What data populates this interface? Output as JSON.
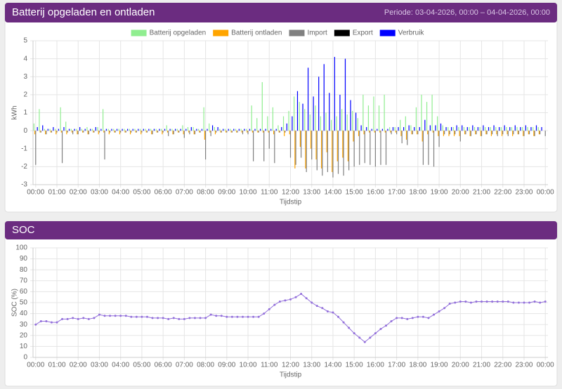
{
  "chart_data": [
    {
      "type": "bar",
      "title": "Batterij opgeladen en ontladen",
      "subtitle": "Periode: 03-04-2026, 00:00 – 04-04-2026, 00:00",
      "x_label": "Tijdstip",
      "y_label": "kWh",
      "legend": "top",
      "grid": true,
      "categories": [
        "00:00",
        null,
        null,
        null,
        "01:00",
        null,
        null,
        null,
        "02:00",
        null,
        null,
        null,
        "03:00",
        null,
        null,
        null,
        "04:00",
        null,
        null,
        null,
        "05:00",
        null,
        null,
        null,
        "06:00",
        null,
        null,
        null,
        "07:00",
        null,
        null,
        null,
        "08:00",
        null,
        null,
        null,
        "09:00",
        null,
        null,
        null,
        "10:00",
        null,
        null,
        null,
        "11:00",
        null,
        null,
        null,
        "12:00",
        null,
        null,
        null,
        "13:00",
        null,
        null,
        null,
        "14:00",
        null,
        null,
        null,
        "15:00",
        null,
        null,
        null,
        "16:00",
        null,
        null,
        null,
        "17:00",
        null,
        null,
        null,
        "18:00",
        null,
        null,
        null,
        "19:00",
        null,
        null,
        null,
        "20:00",
        null,
        null,
        null,
        "21:00",
        null,
        null,
        null,
        "22:00",
        null,
        null,
        null,
        "23:00",
        null,
        null,
        null,
        "00:00"
      ],
      "ylim": [
        -3,
        5
      ],
      "yticks": [
        -3,
        -2,
        -1,
        0,
        1,
        2,
        3,
        4,
        5
      ],
      "series": [
        {
          "name": "Batterij opgeladen",
          "color": "#90ee90",
          "values": [
            0.4,
            1.2,
            0.1,
            0.1,
            0.1,
            1.3,
            0.5,
            0.1,
            0.1,
            0.1,
            0.2,
            0.1,
            0.2,
            1.2,
            0.1,
            0.1,
            0.1,
            0.1,
            0.1,
            0.1,
            0.1,
            0.1,
            0.1,
            0.1,
            0.1,
            0.3,
            0.1,
            0.1,
            0.3,
            0.2,
            0.2,
            0.1,
            1.3,
            0.4,
            0.2,
            0.1,
            0.1,
            0.1,
            0.1,
            0.1,
            0.1,
            1.4,
            0.7,
            2.7,
            0.8,
            1.3,
            0.3,
            0.8,
            1.1,
            1.9,
            1.6,
            1.2,
            0.9,
            1.4,
            0.8,
            1.0,
            0.6,
            0.8,
            1.2,
            0.9,
            1.1,
            0.7,
            2.0,
            1.4,
            1.9,
            1.4,
            2.0,
            0.2,
            0.2,
            0.6,
            0.8,
            0.3,
            1.3,
            2.0,
            1.6,
            2.0,
            0.8,
            0.3,
            0.2,
            0.2,
            0.2,
            0.2,
            0.2,
            0.2,
            0.2,
            0.2,
            0.2,
            0.2,
            0.2,
            0.2,
            0.2,
            0.2,
            0.2,
            0.2,
            0.2,
            0.2,
            0
          ]
        },
        {
          "name": "Batterij ontladen",
          "color": "#ffa500",
          "values": [
            -0.2,
            -0.1,
            -0.2,
            -0.1,
            -0.2,
            -0.1,
            -0.2,
            -0.1,
            -0.2,
            -0.1,
            -0.2,
            -0.1,
            -0.2,
            -0.1,
            -0.2,
            -0.1,
            -0.2,
            -0.1,
            -0.2,
            -0.1,
            -0.2,
            -0.1,
            -0.2,
            -0.1,
            -0.2,
            -0.1,
            -0.2,
            -0.1,
            -0.2,
            -0.1,
            -0.2,
            -0.1,
            -0.5,
            -0.1,
            -0.2,
            -0.1,
            -0.1,
            -0.1,
            -0.1,
            -0.1,
            -0.1,
            -0.1,
            -0.1,
            -0.1,
            -0.1,
            -0.2,
            -0.1,
            -0.3,
            -0.2,
            -2.1,
            -0.9,
            -2.1,
            -1.0,
            -1.6,
            -2.1,
            -1.2,
            -2.3,
            -1.7,
            -1.5,
            -1.7,
            -0.6,
            -0.3,
            -0.2,
            -0.1,
            -0.1,
            -0.1,
            -0.1,
            -0.1,
            -0.1,
            -0.3,
            -0.5,
            -0.2,
            -0.2,
            -0.6,
            -0.2,
            -0.1,
            -0.3,
            -0.3,
            -0.3,
            -0.3,
            -0.3,
            -0.2,
            -0.3,
            -0.2,
            -0.3,
            -0.2,
            -0.3,
            -0.2,
            -0.3,
            -0.2,
            -0.3,
            -0.2,
            -0.3,
            -0.2,
            -0.3,
            -0.2,
            0
          ]
        },
        {
          "name": "Import",
          "color": "#808080",
          "values": [
            -1.9,
            -0.1,
            -0.2,
            -0.1,
            -0.1,
            -1.8,
            -0.1,
            -0.2,
            -0.2,
            -0.1,
            -0.2,
            -0.1,
            -0.1,
            -1.6,
            -0.1,
            -0.1,
            -0.1,
            -0.1,
            -0.1,
            -0.1,
            -0.1,
            -0.1,
            -0.2,
            -0.1,
            -0.1,
            -0.3,
            -0.2,
            -0.1,
            -0.4,
            -0.2,
            -0.2,
            -0.1,
            -1.6,
            -0.3,
            -0.1,
            -0.1,
            -0.1,
            -0.1,
            -0.1,
            -0.2,
            -0.2,
            -1.7,
            -0.1,
            -1.7,
            -1.0,
            -1.8,
            -0.1,
            -0.1,
            -1.5,
            -1.9,
            -1.5,
            -2.3,
            -1.6,
            -2.2,
            -2.5,
            -2.3,
            -2.6,
            -2.4,
            -2.5,
            -2.2,
            -2.0,
            -1.9,
            -1.8,
            -1.9,
            -2.0,
            -1.9,
            -1.9,
            -0.2,
            -0.2,
            -0.7,
            -0.8,
            -0.2,
            -0.2,
            -1.9,
            -1.9,
            -2.0,
            -0.9,
            -0.2,
            -0.2,
            -0.2,
            -0.6,
            -0.2,
            -0.3,
            -0.2,
            -0.3,
            -0.2,
            -0.2,
            -0.3,
            -0.2,
            -0.3,
            -0.2,
            -0.2,
            -0.3,
            -0.2,
            -0.3,
            -0.2,
            -0.3
          ]
        },
        {
          "name": "Export",
          "color": "#000000",
          "values": [
            0,
            0,
            0,
            0,
            0,
            0,
            0,
            0,
            0,
            0,
            0,
            0,
            0,
            0,
            0,
            0,
            0,
            0,
            0,
            0,
            0,
            0,
            0,
            0,
            0,
            0,
            0,
            0,
            0,
            0,
            0,
            0,
            0,
            0,
            0,
            0,
            0,
            0,
            0,
            0,
            0,
            0,
            0,
            0,
            0,
            0,
            0,
            0,
            0,
            0,
            0,
            0,
            0,
            0,
            0,
            0,
            0,
            0,
            0,
            0,
            0,
            0,
            0,
            0,
            0,
            0,
            0,
            0,
            0,
            0,
            0,
            0,
            0,
            0,
            0,
            0,
            0,
            0,
            0,
            0,
            0,
            0,
            0,
            0,
            0,
            0,
            0,
            0,
            0,
            0,
            0,
            0,
            0,
            0,
            0,
            0,
            0
          ]
        },
        {
          "name": "Verbruik",
          "color": "#0000ff",
          "values": [
            0.2,
            0.3,
            0.1,
            0.2,
            0.1,
            0.2,
            0.1,
            0.1,
            0.2,
            0.1,
            0.1,
            0.2,
            0.1,
            0.1,
            0.1,
            0.1,
            0.1,
            0.1,
            0.1,
            0.1,
            0.1,
            0.1,
            0.1,
            0.1,
            0.1,
            0.1,
            0.1,
            0.1,
            0.1,
            0.2,
            0.1,
            0.1,
            0.1,
            0.3,
            0.2,
            0.1,
            0.1,
            0.1,
            0.1,
            0.1,
            0.1,
            0.1,
            0.1,
            0.1,
            0.1,
            0.1,
            0.2,
            0.4,
            0.8,
            2.2,
            1.5,
            3.5,
            1.9,
            3.0,
            3.7,
            2.1,
            4.1,
            2.0,
            4.0,
            1.7,
            1.0,
            0.3,
            0.2,
            0.1,
            0.1,
            0.1,
            0.1,
            0.2,
            0.2,
            0.2,
            0.3,
            0.2,
            0.2,
            0.6,
            0.3,
            0.3,
            0.4,
            0.2,
            0.2,
            0.3,
            0.3,
            0.2,
            0.3,
            0.2,
            0.3,
            0.2,
            0.3,
            0.2,
            0.3,
            0.2,
            0.3,
            0.2,
            0.3,
            0.2,
            0.3,
            0.2,
            0
          ]
        }
      ]
    },
    {
      "type": "line",
      "title": "SOC",
      "x_label": "Tijdstip",
      "y_label": "SOC (%)",
      "grid": true,
      "color": "#9370db",
      "categories": [
        "00:00",
        null,
        null,
        null,
        "01:00",
        null,
        null,
        null,
        "02:00",
        null,
        null,
        null,
        "03:00",
        null,
        null,
        null,
        "04:00",
        null,
        null,
        null,
        "05:00",
        null,
        null,
        null,
        "06:00",
        null,
        null,
        null,
        "07:00",
        null,
        null,
        null,
        "08:00",
        null,
        null,
        null,
        "09:00",
        null,
        null,
        null,
        "10:00",
        null,
        null,
        null,
        "11:00",
        null,
        null,
        null,
        "12:00",
        null,
        null,
        null,
        "13:00",
        null,
        null,
        null,
        "14:00",
        null,
        null,
        null,
        "15:00",
        null,
        null,
        null,
        "16:00",
        null,
        null,
        null,
        "17:00",
        null,
        null,
        null,
        "18:00",
        null,
        null,
        null,
        "19:00",
        null,
        null,
        null,
        "20:00",
        null,
        null,
        null,
        "21:00",
        null,
        null,
        null,
        "22:00",
        null,
        null,
        null,
        "23:00",
        null,
        null,
        null,
        "00:00"
      ],
      "ylim": [
        0,
        100
      ],
      "yticks": [
        0,
        10,
        20,
        30,
        40,
        50,
        60,
        70,
        80,
        90,
        100
      ],
      "values": [
        30,
        33,
        33,
        32,
        32,
        35,
        35,
        36,
        35,
        36,
        35,
        36,
        39,
        38,
        38,
        38,
        38,
        38,
        37,
        37,
        37,
        37,
        36,
        36,
        36,
        35,
        36,
        35,
        35,
        36,
        36,
        36,
        36,
        39,
        38,
        38,
        37,
        37,
        37,
        37,
        37,
        37,
        37,
        40,
        44,
        48,
        51,
        52,
        53,
        55,
        58,
        54,
        50,
        47,
        45,
        42,
        41,
        37,
        32,
        27,
        22,
        18,
        14,
        18,
        22,
        26,
        29,
        33,
        36,
        36,
        35,
        36,
        37,
        37,
        36,
        39,
        42,
        45,
        49,
        50,
        51,
        51,
        50,
        51,
        51,
        51,
        51,
        51,
        51,
        51,
        50,
        50,
        50,
        50,
        51,
        50,
        51
      ]
    }
  ]
}
